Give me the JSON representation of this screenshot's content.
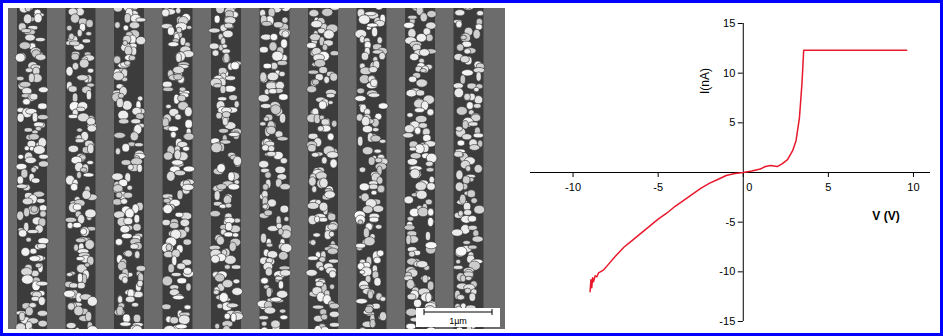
{
  "chart_data": {
    "type": "line",
    "x_label": "V (V)",
    "y_label": "I(nA)",
    "x": [
      -9.0,
      -8.95,
      -8.9,
      -8.85,
      -8.8,
      -8.7,
      -8.6,
      -8.5,
      -8.2,
      -8,
      -7.5,
      -7,
      -6.5,
      -6,
      -5.5,
      -5,
      -4.5,
      -4,
      -3.5,
      -3,
      -2.5,
      -2,
      -1.5,
      -1,
      -0.5,
      0,
      0.5,
      1,
      1.3,
      1.6,
      2,
      2.3,
      2.6,
      2.9,
      3.1,
      3.3,
      3.45,
      3.55,
      4,
      5,
      6,
      7,
      8,
      9,
      9.6
    ],
    "values": [
      -12,
      -10.8,
      -11.6,
      -10.6,
      -11,
      -10.4,
      -10.5,
      -10.1,
      -9.8,
      -9.4,
      -8.4,
      -7.5,
      -6.8,
      -6.1,
      -5.4,
      -4.7,
      -4.1,
      -3.4,
      -2.8,
      -2.2,
      -1.6,
      -1.1,
      -0.7,
      -0.3,
      -0.1,
      0,
      0.15,
      0.35,
      0.6,
      0.7,
      0.6,
      0.9,
      1.3,
      2.2,
      3.2,
      5.5,
      9,
      12.3,
      12.3,
      12.3,
      12.3,
      12.3,
      12.3,
      12.3,
      12.3
    ],
    "color": "#e8192c",
    "xlim": [
      -12.5,
      11
    ],
    "xticks": [
      -10,
      -5,
      0,
      5,
      10
    ],
    "ylim": [
      -15,
      15
    ],
    "yticks": [
      -15,
      -10,
      -5,
      5,
      10,
      15
    ],
    "grid": false
  },
  "sem_image": {
    "scale_bar": "1µm"
  }
}
